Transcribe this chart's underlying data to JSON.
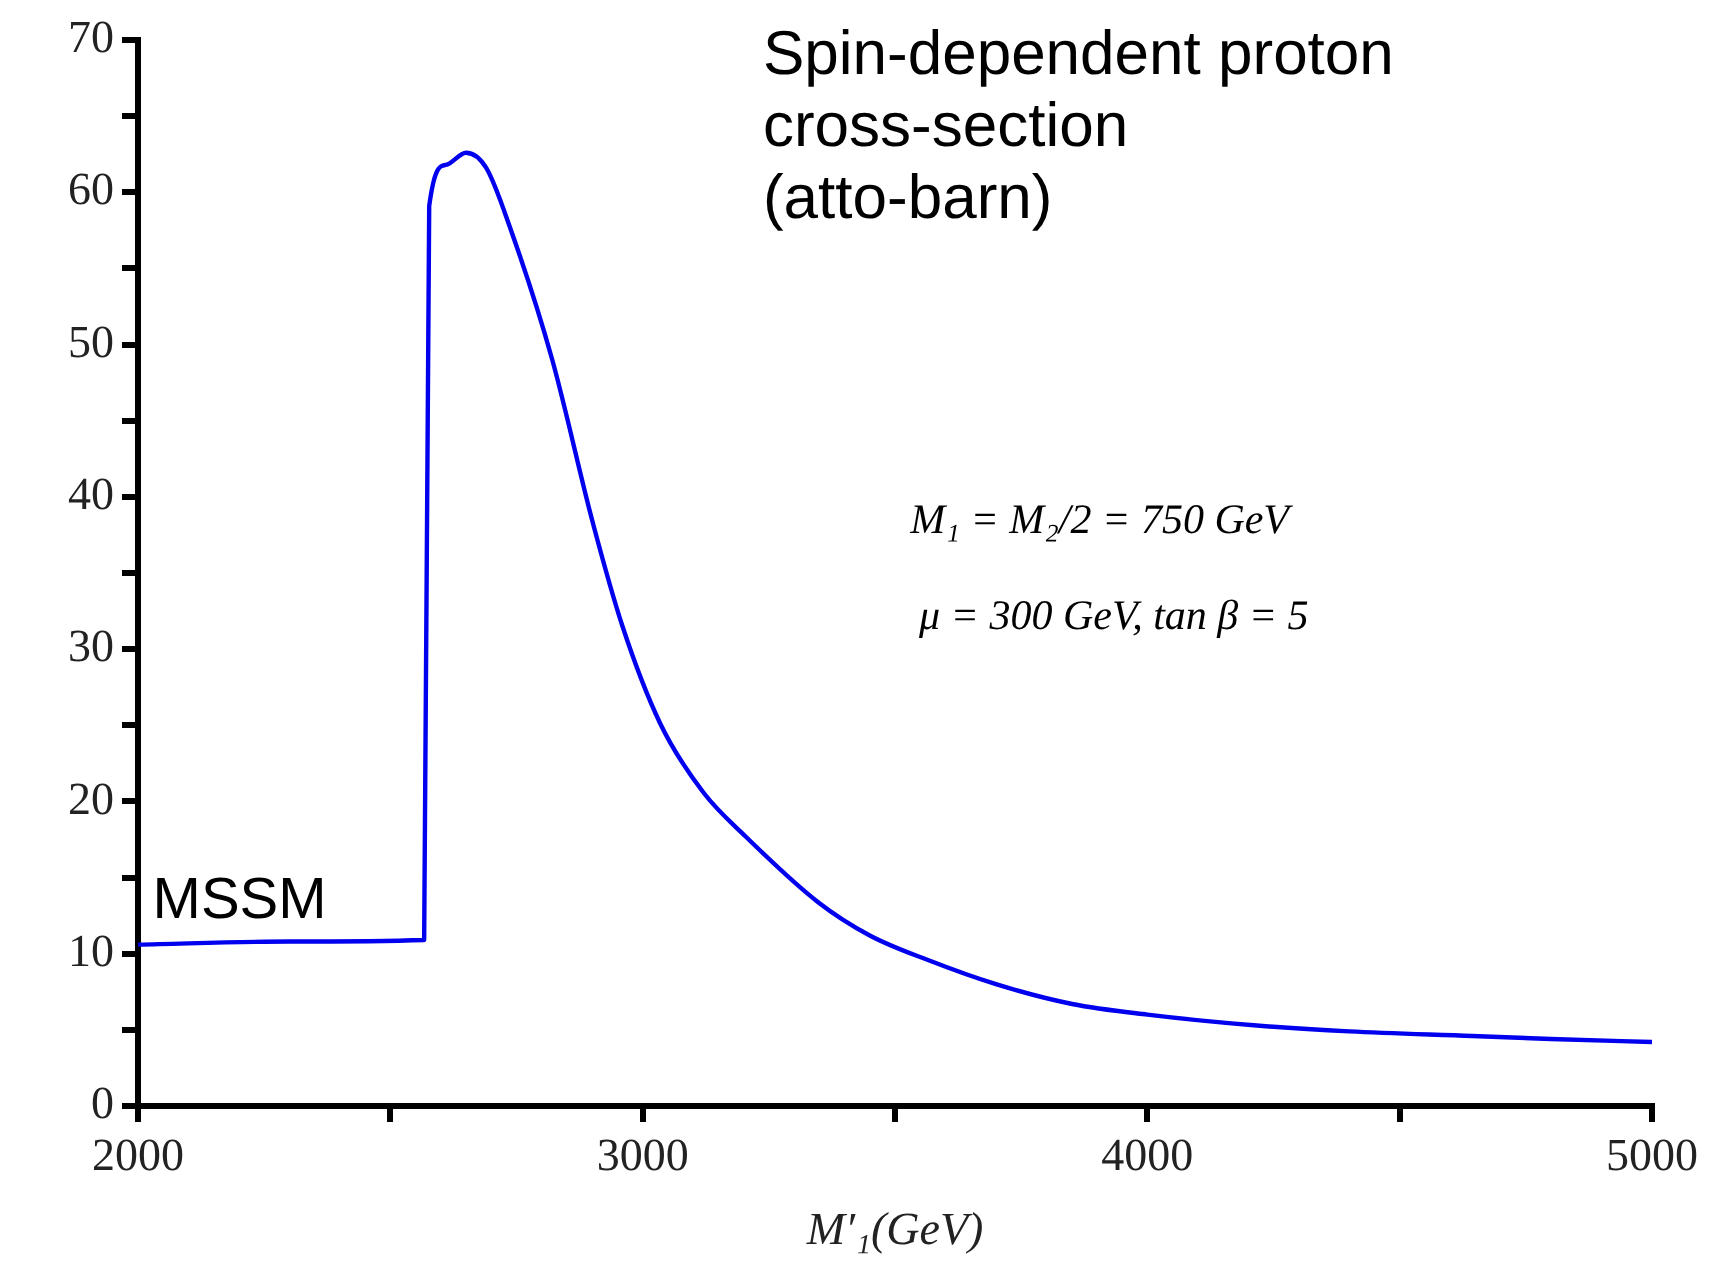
{
  "chart_data": {
    "type": "line",
    "xlabel": "M′₁(GeV)",
    "annotations": [
      "Spin-dependent proton cross-section (atto-barn)",
      "MSSM",
      "M₁ = M₂/2 = 750 GeV",
      "μ = 300 GeV, tan β = 5"
    ],
    "series": [
      {
        "color": "#0000ee",
        "x": [
          2000,
          2300,
          2567,
          2577,
          2610,
          2650,
          2690,
          2737,
          2820,
          2902,
          2960,
          3035,
          3120,
          3204,
          3347,
          3450,
          3564,
          3700,
          3851,
          4000,
          4211,
          4400,
          4644,
          4800,
          5000
        ],
        "values": [
          10.6,
          10.8,
          10.9,
          59.1,
          61.8,
          62.6,
          61.6,
          57.7,
          49.1,
          38.2,
          31.5,
          25.1,
          20.6,
          17.7,
          13.4,
          11.2,
          9.6,
          8,
          6.7,
          6,
          5.3,
          4.9,
          4.6,
          4.4,
          4.2
        ]
      }
    ],
    "xlim": [
      2000,
      5000
    ],
    "xticks": [
      2000,
      {
        "value": 2500,
        "label": null
      },
      3000,
      {
        "value": 3500,
        "label": null
      },
      4000,
      {
        "value": 4500,
        "label": null
      },
      5000
    ],
    "ylim": [
      0,
      70
    ],
    "yticks": [
      0,
      {
        "value": 5,
        "label": null
      },
      10,
      {
        "value": 15,
        "label": null
      },
      20,
      {
        "value": 25,
        "label": null
      },
      30,
      {
        "value": 35,
        "label": null
      },
      40,
      {
        "value": 45,
        "label": null
      },
      50,
      {
        "value": 55,
        "label": null
      },
      60,
      {
        "value": 65,
        "label": null
      },
      70
    ],
    "grid": false,
    "legend": false,
    "marker": "none",
    "line_style": "solid"
  }
}
